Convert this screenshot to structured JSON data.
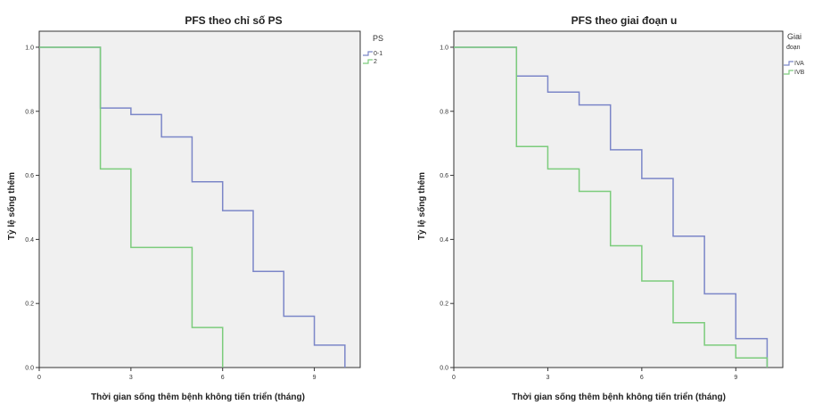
{
  "chart_data": [
    {
      "type": "line",
      "step": true,
      "title": "PFS theo chỉ số PS",
      "xlabel": "Thời gian sống thêm bệnh không tiến triển (tháng)",
      "ylabel": "Tỷ lệ sống thêm",
      "xlim": [
        0,
        10.5
      ],
      "ylim": [
        0,
        1.05
      ],
      "xticks": [
        "0",
        "3",
        "6",
        "9"
      ],
      "xtick_values": [
        0,
        3,
        6,
        9
      ],
      "yticks": [
        "0.0",
        "0.2",
        "0.4",
        "0.6",
        "0.8",
        "1.0"
      ],
      "ytick_values": [
        0,
        0.2,
        0.4,
        0.6,
        0.8,
        1.0
      ],
      "plot_background": "#f0f0f0",
      "grid": false,
      "legend": {
        "title": "PS",
        "placement": "outside-top-right"
      },
      "series": [
        {
          "name": "0-1",
          "color": "#7b86c8",
          "x": [
            0,
            2,
            3,
            4,
            5,
            6,
            7,
            8,
            9,
            10
          ],
          "y": [
            1.0,
            0.81,
            0.79,
            0.72,
            0.58,
            0.49,
            0.3,
            0.16,
            0.07,
            0.0
          ]
        },
        {
          "name": "2",
          "color": "#7ccc7c",
          "x": [
            0,
            2,
            3,
            5,
            6
          ],
          "y": [
            1.0,
            0.62,
            0.375,
            0.125,
            0.0
          ]
        }
      ]
    },
    {
      "type": "line",
      "step": true,
      "title": "PFS theo giai đoạn u",
      "xlabel": "Thời gian sống thêm bệnh không tiến triển (tháng)",
      "ylabel": "Tỷ lệ sống thêm",
      "xlim": [
        0,
        10.5
      ],
      "ylim": [
        0,
        1.05
      ],
      "xticks": [
        "0",
        "3",
        "6",
        "9"
      ],
      "xtick_values": [
        0,
        3,
        6,
        9
      ],
      "yticks": [
        "0.0",
        "0.2",
        "0.4",
        "0.6",
        "0.8",
        "1.0"
      ],
      "ytick_values": [
        0,
        0.2,
        0.4,
        0.6,
        0.8,
        1.0
      ],
      "plot_background": "#f0f0f0",
      "grid": false,
      "legend": {
        "title_lines": [
          "Giai",
          "đoạn"
        ],
        "placement": "outside-top-right"
      },
      "series": [
        {
          "name": "IVA",
          "color": "#7b86c8",
          "x": [
            0,
            2,
            3,
            4,
            5,
            6,
            7,
            8,
            9,
            10
          ],
          "y": [
            1.0,
            0.91,
            0.86,
            0.82,
            0.68,
            0.59,
            0.41,
            0.23,
            0.09,
            0.0
          ]
        },
        {
          "name": "IVB",
          "color": "#7ccc7c",
          "x": [
            0,
            2,
            3,
            4,
            5,
            6,
            7,
            8,
            9,
            10
          ],
          "y": [
            1.0,
            0.69,
            0.62,
            0.55,
            0.38,
            0.27,
            0.14,
            0.07,
            0.03,
            0.0
          ]
        }
      ]
    }
  ]
}
